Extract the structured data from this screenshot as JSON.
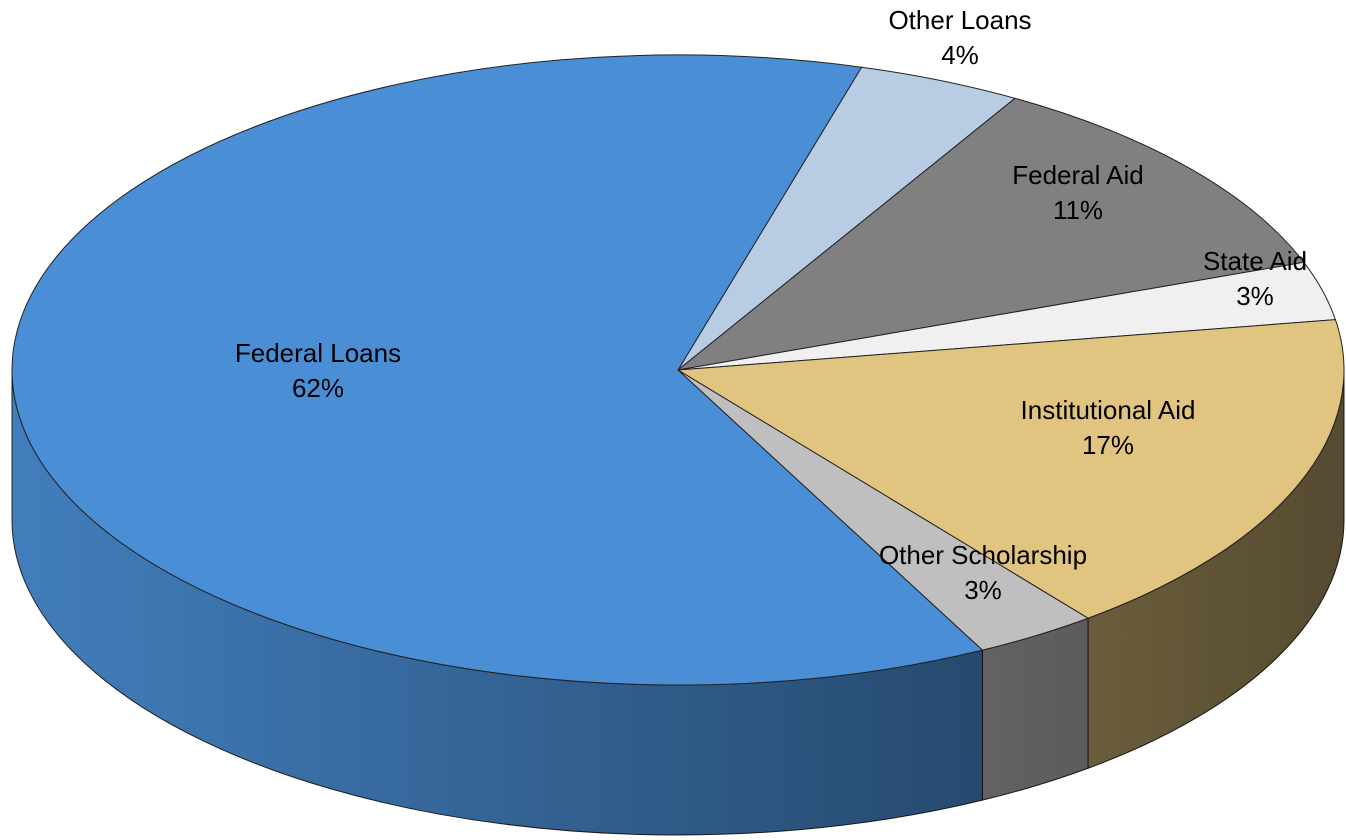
{
  "chart_data": {
    "type": "pie",
    "categories": [
      "Other Loans",
      "Federal Aid",
      "State Aid",
      "Institutional Aid",
      "Other Scholarship",
      "Federal Loans"
    ],
    "values": [
      4,
      11,
      3,
      17,
      3,
      62
    ],
    "value_labels": [
      "4%",
      "11%",
      "3%",
      "17%",
      "3%",
      "62%"
    ],
    "colors": [
      "#b8cce4",
      "#808080",
      "#f0f0f0",
      "#e0c47f",
      "#bfbfbf",
      "#4a8fd6"
    ]
  }
}
